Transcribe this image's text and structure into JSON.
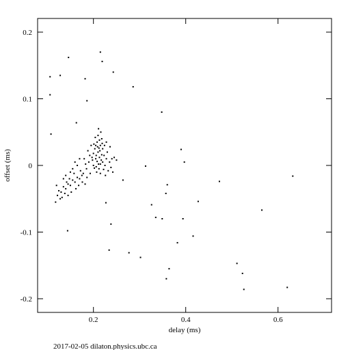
{
  "chart_data": {
    "type": "scatter",
    "xlabel": "delay (ms)",
    "ylabel": "offset (ms)",
    "footer": "2017-02-05  dilaton.physics.ubc.ca",
    "xlim": [
      0.079,
      0.716
    ],
    "ylim": [
      -0.2205,
      0.2205
    ],
    "xticks": [
      0.2,
      0.4,
      0.6
    ],
    "yticks": [
      -0.2,
      -0.1,
      0,
      0.1,
      0.2
    ],
    "color": "#000000",
    "x": [
      0.2,
      0.205,
      0.21,
      0.215,
      0.22,
      0.212,
      0.208,
      0.218,
      0.203,
      0.213,
      0.207,
      0.223,
      0.198,
      0.215,
      0.21,
      0.205,
      0.22,
      0.225,
      0.2,
      0.217,
      0.211,
      0.206,
      0.214,
      0.209,
      0.219,
      0.202,
      0.222,
      0.213,
      0.216,
      0.211,
      0.197,
      0.228,
      0.204,
      0.224,
      0.208,
      0.212,
      0.218,
      0.206,
      0.201,
      0.215,
      0.23,
      0.235,
      0.24,
      0.245,
      0.232,
      0.238,
      0.228,
      0.19,
      0.185,
      0.192,
      0.188,
      0.193,
      0.195,
      0.226,
      0.236,
      0.25,
      0.242,
      0.18,
      0.183,
      0.178,
      0.175,
      0.17,
      0.165,
      0.16,
      0.155,
      0.15,
      0.145,
      0.14,
      0.135,
      0.13,
      0.125,
      0.122,
      0.128,
      0.138,
      0.148,
      0.158,
      0.168,
      0.172,
      0.162,
      0.152,
      0.142,
      0.132,
      0.118,
      0.145,
      0.176,
      0.186,
      0.182,
      0.165,
      0.155,
      0.16,
      0.15,
      0.17,
      0.14,
      0.12,
      0.135,
      0.106,
      0.106,
      0.128,
      0.146,
      0.215,
      0.219,
      0.182,
      0.186,
      0.286,
      0.243,
      0.348,
      0.39,
      0.397,
      0.313,
      0.36,
      0.357,
      0.427,
      0.326,
      0.335,
      0.394,
      0.349,
      0.416,
      0.382,
      0.302,
      0.277,
      0.364,
      0.358,
      0.473,
      0.565,
      0.632,
      0.511,
      0.523,
      0.526,
      0.62,
      0.144,
      0.234,
      0.238,
      0.227,
      0.264,
      0.163,
      0.108
    ],
    "y": [
      0.0,
      0.01,
      0.02,
      0.03,
      0.005,
      -0.005,
      0.035,
      0.04,
      0.025,
      0.012,
      -0.01,
      0.015,
      0.008,
      -0.012,
      0.045,
      0.03,
      0.025,
      0.0,
      0.018,
      0.008,
      0.002,
      0.015,
      0.022,
      0.028,
      0.033,
      -0.004,
      -0.006,
      0.038,
      0.05,
      0.055,
      0.012,
      0.01,
      0.042,
      0.03,
      0.006,
      0.026,
      0.016,
      -0.002,
      0.032,
      0.002,
      0.02,
      0.005,
      0.01,
      0.012,
      -0.008,
      -0.003,
      0.035,
      0.005,
      -0.005,
      0.015,
      0.022,
      -0.012,
      0.03,
      -0.015,
      0.028,
      0.008,
      -0.01,
      0.01,
      0.002,
      -0.012,
      -0.015,
      -0.02,
      -0.018,
      -0.025,
      -0.022,
      -0.03,
      -0.028,
      -0.035,
      -0.032,
      -0.04,
      -0.038,
      -0.045,
      -0.05,
      -0.042,
      -0.02,
      -0.012,
      -0.03,
      -0.008,
      -0.035,
      -0.04,
      -0.025,
      -0.048,
      -0.055,
      -0.045,
      -0.025,
      -0.018,
      -0.028,
      0.0,
      -0.005,
      0.005,
      -0.01,
      0.01,
      -0.015,
      -0.03,
      -0.02,
      0.133,
      0.106,
      0.135,
      0.162,
      0.17,
      0.156,
      0.13,
      0.097,
      0.118,
      0.14,
      0.08,
      0.024,
      0.005,
      -0.001,
      -0.029,
      -0.042,
      -0.054,
      -0.059,
      -0.078,
      -0.08,
      -0.08,
      -0.106,
      -0.116,
      -0.138,
      -0.131,
      -0.155,
      -0.17,
      -0.024,
      -0.067,
      -0.016,
      -0.147,
      -0.162,
      -0.186,
      -0.183,
      -0.098,
      -0.127,
      -0.088,
      -0.056,
      -0.022,
      0.064,
      0.047
    ]
  }
}
